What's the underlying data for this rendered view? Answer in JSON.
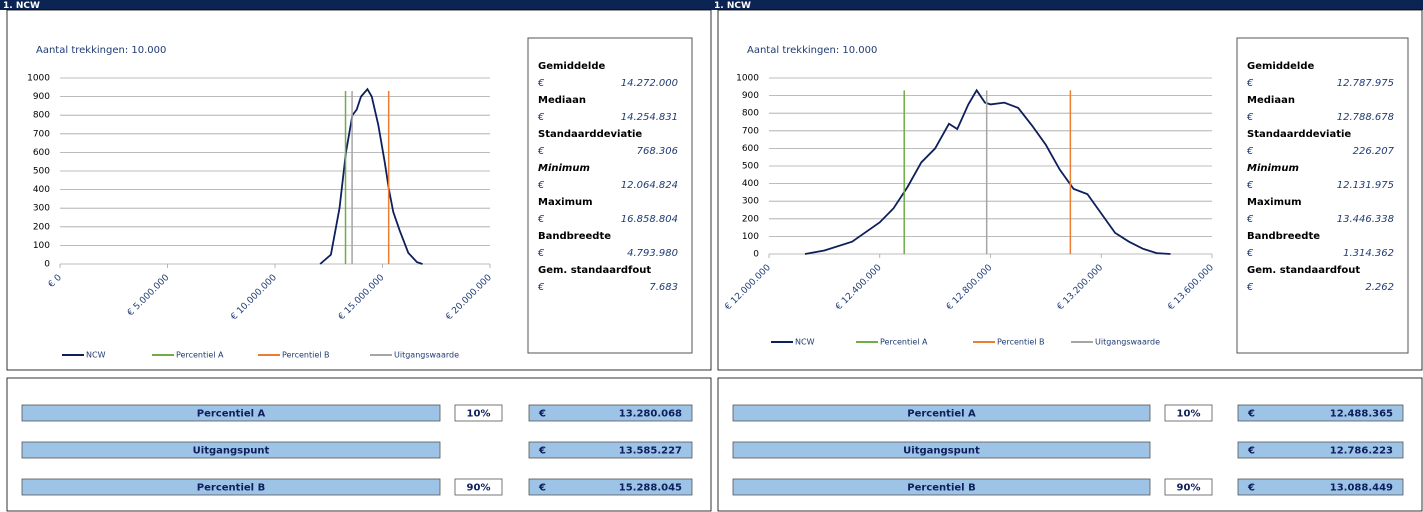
{
  "chart_data": [
    {
      "type": "line",
      "subtitle": "Aantal trekkingen: 10.000",
      "xlim": [
        0,
        20000000
      ],
      "xticks": [
        {
          "value": 0,
          "label": "€ 0"
        },
        {
          "value": 5000000,
          "label": "€ 5.000.000"
        },
        {
          "value": 10000000,
          "label": "€ 10.000.000"
        },
        {
          "value": 15000000,
          "label": "€ 15.000.000"
        },
        {
          "value": 20000000,
          "label": "€ 20.000.000"
        }
      ],
      "ylim": [
        0,
        1000
      ],
      "yticks": [
        0,
        100,
        200,
        300,
        400,
        500,
        600,
        700,
        800,
        900,
        1000
      ],
      "grid": true,
      "series": [
        {
          "name": "NCW",
          "color": "#0d1f5c",
          "x": [
            12100000,
            12600000,
            13000000,
            13300000,
            13600000,
            13800000,
            14000000,
            14300000,
            14500000,
            14800000,
            15100000,
            15300000,
            15500000,
            15800000,
            16200000,
            16600000,
            16860000
          ],
          "values": [
            0,
            50,
            300,
            600,
            800,
            830,
            900,
            940,
            900,
            750,
            550,
            400,
            280,
            180,
            60,
            10,
            0
          ]
        },
        {
          "name": "Percentiel A",
          "color": "#70ad47",
          "x": [
            13280068,
            13280068
          ],
          "values": [
            0,
            930
          ]
        },
        {
          "name": "Percentiel B",
          "color": "#ed7d31",
          "x": [
            15288045,
            15288045
          ],
          "values": [
            0,
            930
          ]
        },
        {
          "name": "Uitgangswaarde",
          "color": "#a5a5a5",
          "x": [
            13585227,
            13585227
          ],
          "values": [
            0,
            930
          ]
        }
      ]
    },
    {
      "type": "line",
      "subtitle": "Aantal trekkingen: 10.000",
      "xlim": [
        12000000,
        13600000
      ],
      "xticks": [
        {
          "value": 12000000,
          "label": "€ 12.000.000"
        },
        {
          "value": 12400000,
          "label": "€ 12.400.000"
        },
        {
          "value": 12800000,
          "label": "€ 12.800.000"
        },
        {
          "value": 13200000,
          "label": "€ 13.200.000"
        },
        {
          "value": 13600000,
          "label": "€ 13.600.000"
        }
      ],
      "ylim": [
        0,
        1000
      ],
      "yticks": [
        0,
        100,
        200,
        300,
        400,
        500,
        600,
        700,
        800,
        900,
        1000
      ],
      "grid": true,
      "series": [
        {
          "name": "NCW",
          "color": "#0d1f5c",
          "x": [
            12130000,
            12200000,
            12300000,
            12400000,
            12450000,
            12500000,
            12550000,
            12600000,
            12650000,
            12680000,
            12720000,
            12750000,
            12780000,
            12800000,
            12850000,
            12900000,
            12950000,
            13000000,
            13050000,
            13100000,
            13150000,
            13200000,
            13250000,
            13300000,
            13350000,
            13400000,
            13450000
          ],
          "values": [
            0,
            20,
            70,
            180,
            260,
            380,
            520,
            600,
            740,
            710,
            850,
            930,
            860,
            850,
            860,
            830,
            730,
            620,
            480,
            370,
            340,
            230,
            120,
            70,
            30,
            5,
            0
          ]
        },
        {
          "name": "Percentiel A",
          "color": "#70ad47",
          "x": [
            12488365,
            12488365
          ],
          "values": [
            0,
            930
          ]
        },
        {
          "name": "Percentiel B",
          "color": "#ed7d31",
          "x": [
            13088449,
            13088449
          ],
          "values": [
            0,
            930
          ]
        },
        {
          "name": "Uitgangswaarde",
          "color": "#a5a5a5",
          "x": [
            12786223,
            12786223
          ],
          "values": [
            0,
            930
          ]
        }
      ]
    }
  ],
  "panels": [
    {
      "header": "1. NCW",
      "stats": [
        {
          "label": "Gemiddelde",
          "currency": "€",
          "value": "14.272.000"
        },
        {
          "label": "Mediaan",
          "currency": "€",
          "value": "14.254.831"
        },
        {
          "label": "Standaarddeviatie",
          "currency": "€",
          "value": "768.306"
        },
        {
          "label": "Minimum",
          "emphasis": "italic",
          "currency": "€",
          "value": "12.064.824"
        },
        {
          "label": "Maximum",
          "currency": "€",
          "value": "16.858.804"
        },
        {
          "label": "Bandbreedte",
          "currency": "€",
          "value": "4.793.980"
        },
        {
          "label": "Gem. standaardfout",
          "currency": "€",
          "value": "7.683"
        }
      ],
      "table": [
        {
          "label": "Percentiel A",
          "percent": "10%",
          "currency": "€",
          "value": "13.280.068"
        },
        {
          "label": "Uitgangspunt",
          "currency": "€",
          "value": "13.585.227"
        },
        {
          "label": "Percentiel B",
          "percent": "90%",
          "currency": "€",
          "value": "15.288.045"
        }
      ]
    },
    {
      "header": "1. NCW",
      "stats": [
        {
          "label": "Gemiddelde",
          "currency": "€",
          "value": "12.787.975"
        },
        {
          "label": "Mediaan",
          "currency": "€",
          "value": "12.788.678"
        },
        {
          "label": "Standaarddeviatie",
          "currency": "€",
          "value": "226.207"
        },
        {
          "label": "Minimum",
          "emphasis": "italic",
          "currency": "€",
          "value": "12.131.975"
        },
        {
          "label": "Maximum",
          "currency": "€",
          "value": "13.446.338"
        },
        {
          "label": "Bandbreedte",
          "currency": "€",
          "value": "1.314.362"
        },
        {
          "label": "Gem. standaardfout",
          "currency": "€",
          "value": "2.262"
        }
      ],
      "table": [
        {
          "label": "Percentiel A",
          "percent": "10%",
          "currency": "€",
          "value": "12.488.365"
        },
        {
          "label": "Uitgangspunt",
          "currency": "€",
          "value": "12.786.223"
        },
        {
          "label": "Percentiel B",
          "percent": "90%",
          "currency": "€",
          "value": "13.088.449"
        }
      ]
    }
  ]
}
